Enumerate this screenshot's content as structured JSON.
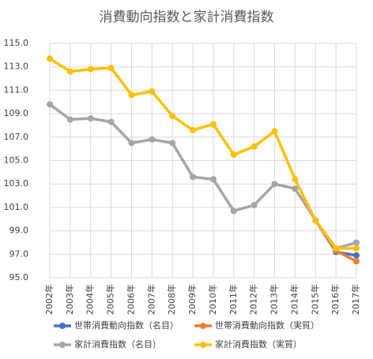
{
  "chart_data": {
    "type": "line",
    "title": "消費動向指数と家計消費指数",
    "categories": [
      "2002年",
      "2003年",
      "2004年",
      "2005年",
      "2006年",
      "2007年",
      "2008年",
      "2009年",
      "2010年",
      "2011年",
      "2012年",
      "2013年",
      "2014年",
      "2015年",
      "2016年",
      "2017年"
    ],
    "series": [
      {
        "name": "世帯消費動向指数（名目）",
        "color": "#4472c4",
        "values": [
          null,
          null,
          null,
          null,
          null,
          null,
          null,
          null,
          null,
          null,
          null,
          null,
          null,
          99.9,
          97.2,
          96.9
        ]
      },
      {
        "name": "世帯消費動向指数（実質）",
        "color": "#ed7d31",
        "values": [
          null,
          null,
          null,
          null,
          null,
          null,
          null,
          null,
          null,
          null,
          null,
          null,
          null,
          99.9,
          97.3,
          96.4
        ]
      },
      {
        "name": "家計消費指数（名目）",
        "color": "#a5a5a5",
        "values": [
          109.8,
          108.5,
          108.6,
          108.3,
          106.5,
          106.8,
          106.5,
          103.6,
          103.4,
          100.7,
          101.2,
          103.0,
          102.6,
          99.9,
          97.5,
          98.0
        ]
      },
      {
        "name": "家計消費指数（実質）",
        "color": "#ffc000",
        "values": [
          113.7,
          112.6,
          112.8,
          112.9,
          110.6,
          110.9,
          108.8,
          107.6,
          108.1,
          105.5,
          106.2,
          107.5,
          103.4,
          99.9,
          97.5,
          97.5
        ]
      }
    ],
    "ylim": [
      95,
      115
    ],
    "yticks": [
      {
        "value": 95,
        "label": "95.0"
      },
      {
        "value": 97,
        "label": "97.0"
      },
      {
        "value": 99,
        "label": "99.0"
      },
      {
        "value": 101,
        "label": "101.0"
      },
      {
        "value": 103,
        "label": "103.0"
      },
      {
        "value": 105,
        "label": "105.0"
      },
      {
        "value": 107,
        "label": "107.0"
      },
      {
        "value": 109,
        "label": "109.0"
      },
      {
        "value": 111,
        "label": "111.0"
      },
      {
        "value": 113,
        "label": "113.0"
      },
      {
        "value": 115,
        "label": "115.0"
      }
    ],
    "grid": true
  }
}
